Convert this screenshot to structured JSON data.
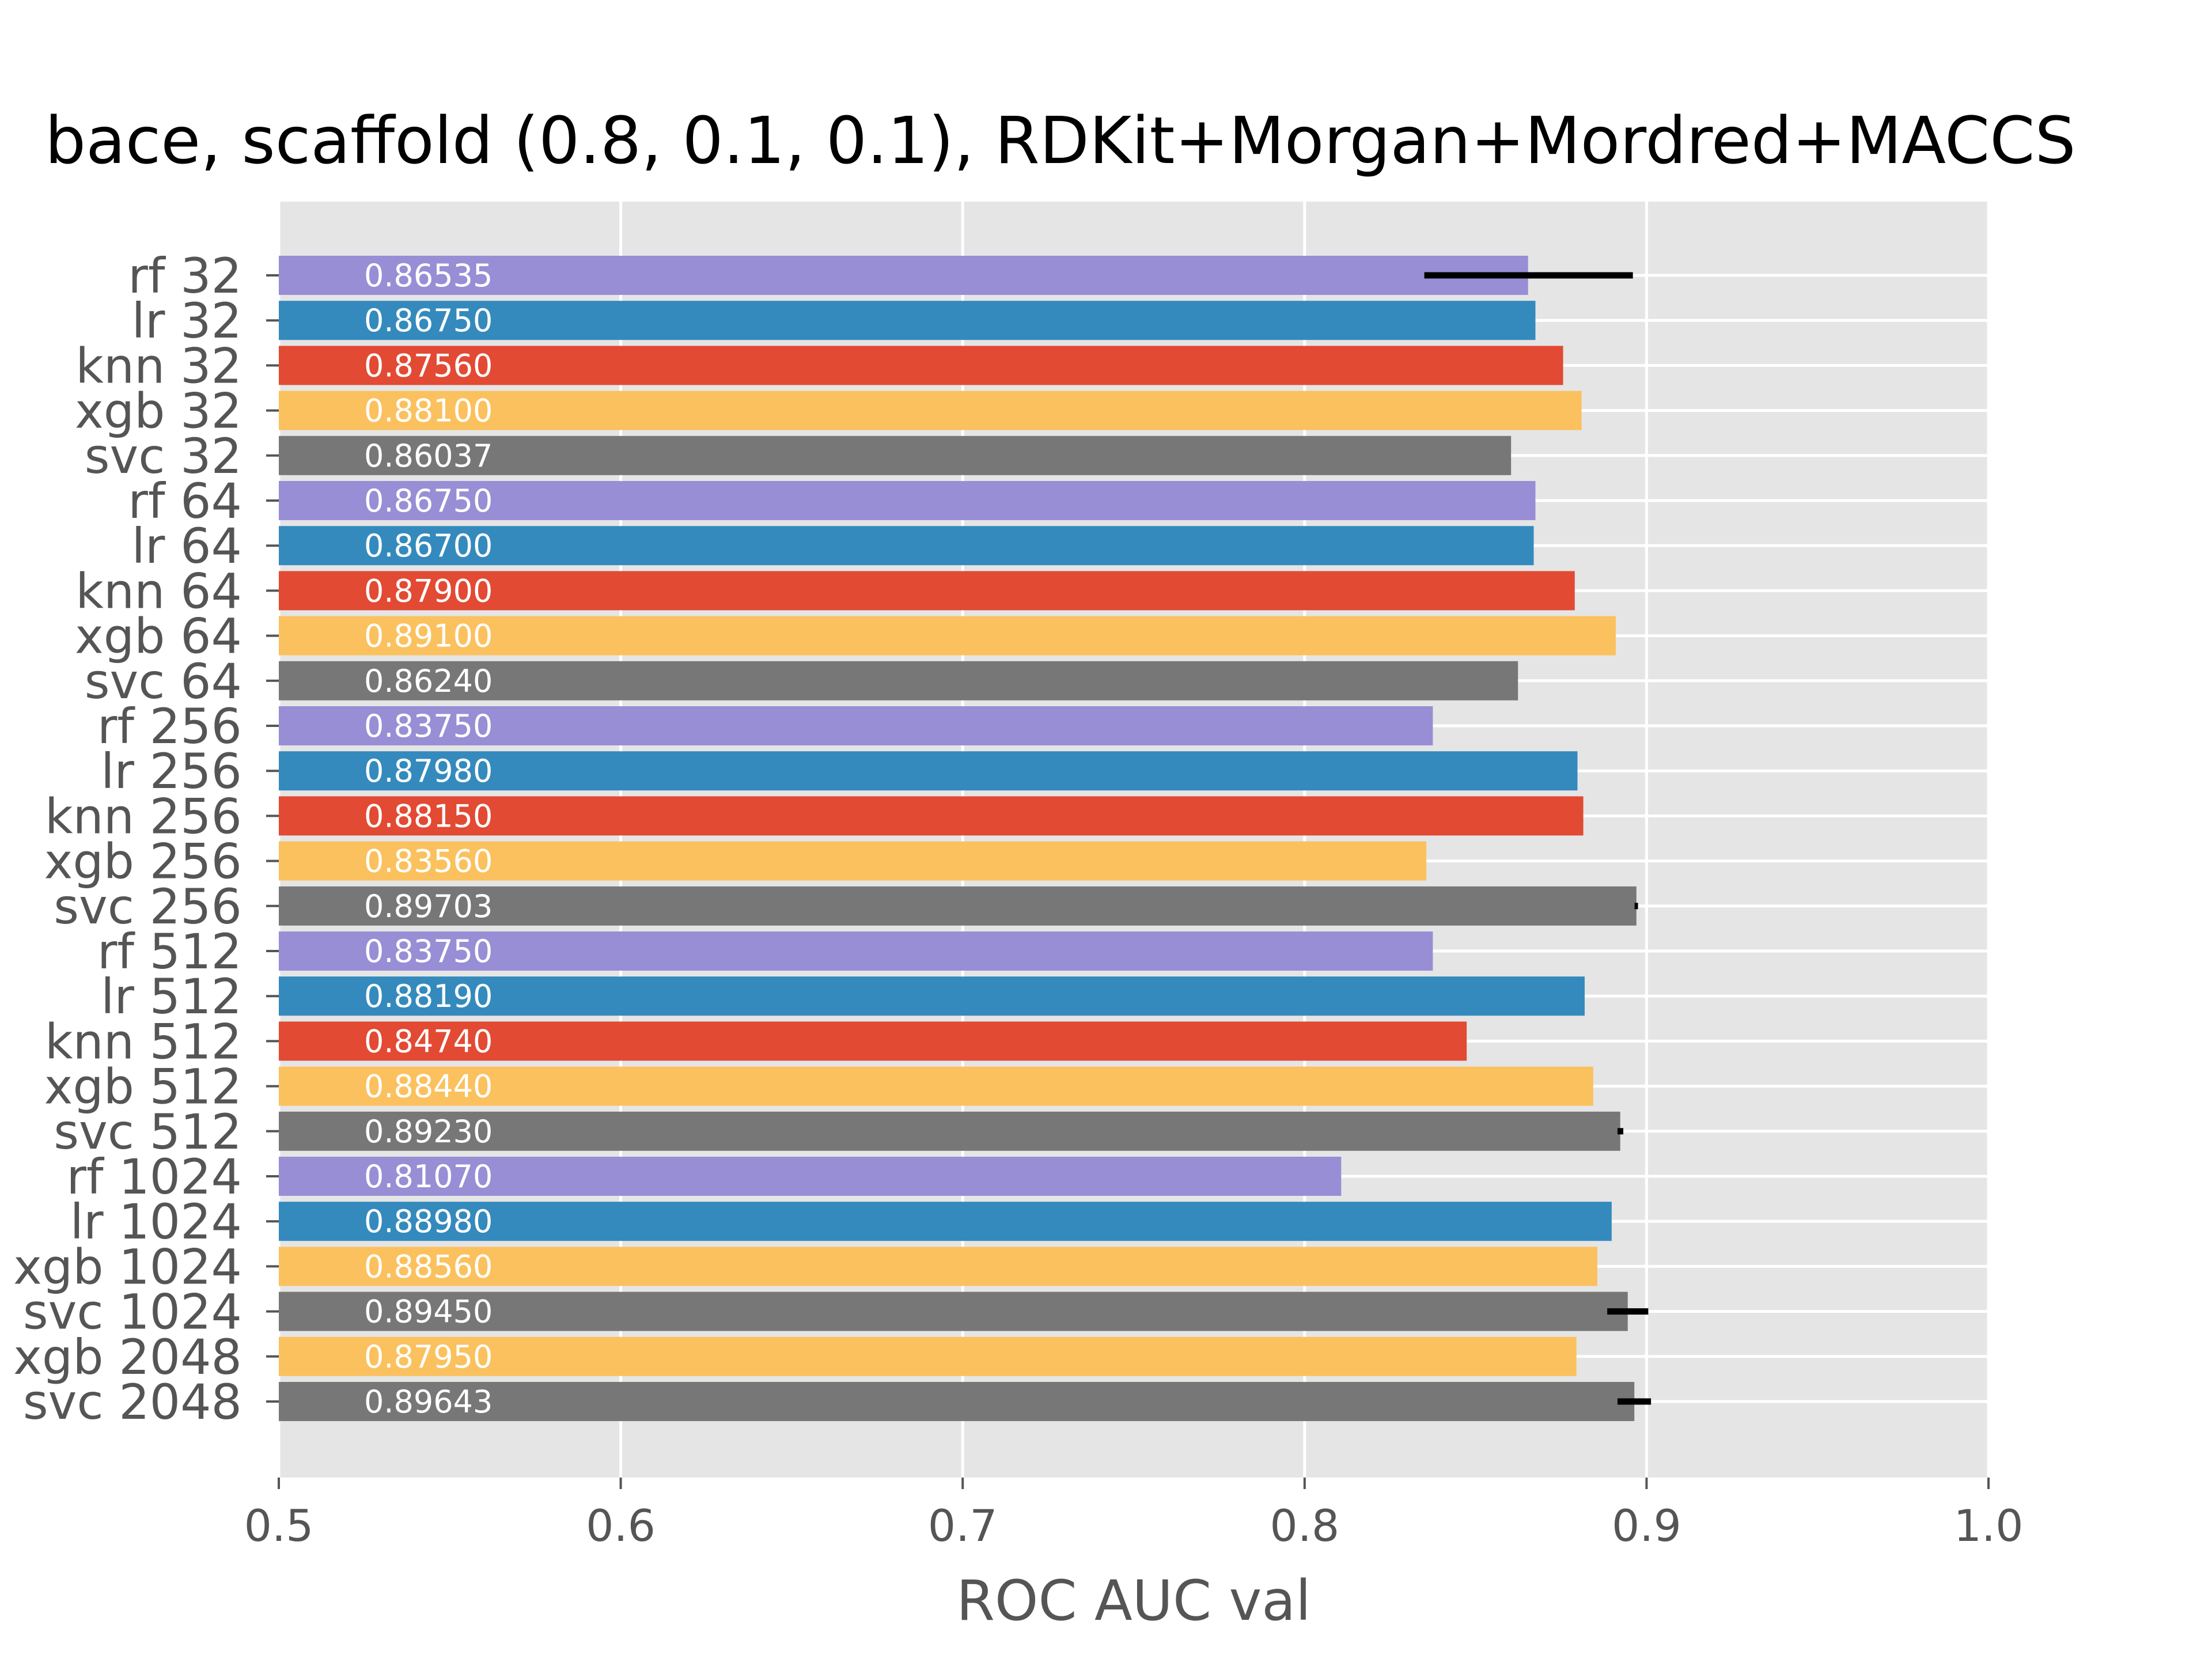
{
  "chart_data": {
    "type": "bar",
    "orientation": "horizontal",
    "title": "bace, scaffold (0.8, 0.1, 0.1), RDKit+Morgan+Mordred+MACCS",
    "xlabel": "ROC AUC val",
    "ylabel": "",
    "xlim": [
      0.5,
      1.0
    ],
    "xticks": [
      "0.5",
      "0.6",
      "0.7",
      "0.8",
      "0.9",
      "1.0"
    ],
    "grid": true,
    "legend": "none",
    "colors": {
      "rf": "#988ED5",
      "lr": "#348ABD",
      "knn": "#E24A33",
      "xgb": "#FBC15E",
      "svc": "#777777",
      "background": "#E5E5E5",
      "grid": "#FFFFFF",
      "error": "#000000"
    },
    "bars": [
      {
        "label": "rf 32",
        "model": "rf",
        "value": 0.86535,
        "value_label": "0.86535",
        "err": [
          0.835,
          0.896
        ]
      },
      {
        "label": "lr 32",
        "model": "lr",
        "value": 0.8675,
        "value_label": "0.86750"
      },
      {
        "label": "knn 32",
        "model": "knn",
        "value": 0.8756,
        "value_label": "0.87560"
      },
      {
        "label": "xgb 32",
        "model": "xgb",
        "value": 0.881,
        "value_label": "0.88100"
      },
      {
        "label": "svc 32",
        "model": "svc",
        "value": 0.86037,
        "value_label": "0.86037"
      },
      {
        "label": "rf 64",
        "model": "rf",
        "value": 0.8675,
        "value_label": "0.86750"
      },
      {
        "label": "lr 64",
        "model": "lr",
        "value": 0.867,
        "value_label": "0.86700"
      },
      {
        "label": "knn 64",
        "model": "knn",
        "value": 0.879,
        "value_label": "0.87900"
      },
      {
        "label": "xgb 64",
        "model": "xgb",
        "value": 0.891,
        "value_label": "0.89100"
      },
      {
        "label": "svc 64",
        "model": "svc",
        "value": 0.8624,
        "value_label": "0.86240"
      },
      {
        "label": "rf 256",
        "model": "rf",
        "value": 0.8375,
        "value_label": "0.83750"
      },
      {
        "label": "lr 256",
        "model": "lr",
        "value": 0.8798,
        "value_label": "0.87980"
      },
      {
        "label": "knn 256",
        "model": "knn",
        "value": 0.8815,
        "value_label": "0.88150"
      },
      {
        "label": "xgb 256",
        "model": "xgb",
        "value": 0.8356,
        "value_label": "0.83560"
      },
      {
        "label": "svc 256",
        "model": "svc",
        "value": 0.89703,
        "value_label": "0.89703",
        "err": [
          0.8965,
          0.8975
        ]
      },
      {
        "label": "rf 512",
        "model": "rf",
        "value": 0.8375,
        "value_label": "0.83750"
      },
      {
        "label": "lr 512",
        "model": "lr",
        "value": 0.8819,
        "value_label": "0.88190"
      },
      {
        "label": "knn 512",
        "model": "knn",
        "value": 0.8474,
        "value_label": "0.84740"
      },
      {
        "label": "xgb 512",
        "model": "xgb",
        "value": 0.8844,
        "value_label": "0.88440"
      },
      {
        "label": "svc 512",
        "model": "svc",
        "value": 0.8923,
        "value_label": "0.89230",
        "err": [
          0.8915,
          0.8932
        ]
      },
      {
        "label": "rf 1024",
        "model": "rf",
        "value": 0.8107,
        "value_label": "0.81070"
      },
      {
        "label": "lr 1024",
        "model": "lr",
        "value": 0.8898,
        "value_label": "0.88980"
      },
      {
        "label": "xgb 1024",
        "model": "xgb",
        "value": 0.8856,
        "value_label": "0.88560"
      },
      {
        "label": "svc 1024",
        "model": "svc",
        "value": 0.8945,
        "value_label": "0.89450",
        "err": [
          0.8885,
          0.9005
        ]
      },
      {
        "label": "xgb 2048",
        "model": "xgb",
        "value": 0.8795,
        "value_label": "0.87950"
      },
      {
        "label": "svc 2048",
        "model": "svc",
        "value": 0.89643,
        "value_label": "0.89643",
        "err": [
          0.8915,
          0.9013
        ]
      }
    ]
  }
}
